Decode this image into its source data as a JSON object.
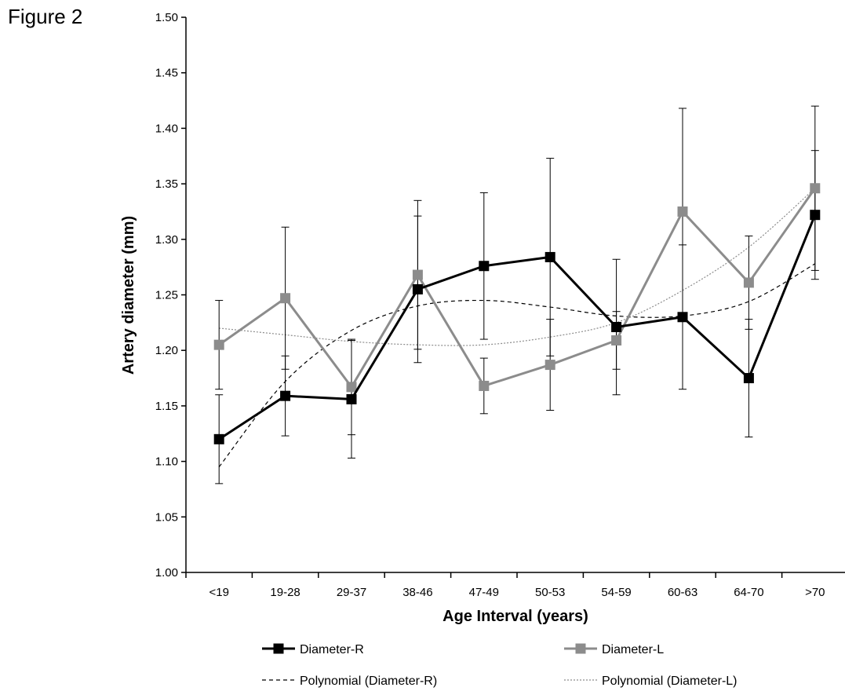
{
  "figure_label": "Figure 2",
  "chart_data": {
    "type": "line",
    "xlabel": "Age Interval (years)",
    "ylabel": "Artery diameter (mm)",
    "categories": [
      "<19",
      "19-28",
      "29-37",
      "38-46",
      "47-49",
      "50-53",
      "54-59",
      "60-63",
      "64-70",
      ">70"
    ],
    "ylim": [
      1.0,
      1.5
    ],
    "yticks": [
      "1.00",
      "1.05",
      "1.10",
      "1.15",
      "1.20",
      "1.25",
      "1.30",
      "1.35",
      "1.40",
      "1.45",
      "1.50"
    ],
    "grid": false,
    "legend_position": "bottom",
    "series": [
      {
        "name": "Diameter-R",
        "color": "#000000",
        "marker": "square",
        "values": [
          1.12,
          1.159,
          1.156,
          1.255,
          1.276,
          1.284,
          1.221,
          1.23,
          1.175,
          1.322
        ],
        "error": [
          0.04,
          0.036,
          0.053,
          0.066,
          0.066,
          0.089,
          0.061,
          0.065,
          0.053,
          0.058
        ]
      },
      {
        "name": "Diameter-L",
        "color": "#8c8c8c",
        "marker": "square",
        "values": [
          1.205,
          1.247,
          1.167,
          1.268,
          1.168,
          1.187,
          1.209,
          1.325,
          1.261,
          1.346
        ],
        "error": [
          0.04,
          0.064,
          0.043,
          0.067,
          0.025,
          0.041,
          0.026,
          0.093,
          0.042,
          0.074
        ]
      }
    ],
    "trendlines": [
      {
        "name": "Polynomial (Diameter-R)",
        "color": "#000000",
        "style": "dashed",
        "values": [
          1.095,
          1.172,
          1.218,
          1.24,
          1.245,
          1.239,
          1.231,
          1.231,
          1.244,
          1.278
        ]
      },
      {
        "name": "Polynomial (Diameter-L)",
        "color": "#8c8c8c",
        "style": "dotted",
        "values": [
          1.22,
          1.214,
          1.208,
          1.205,
          1.205,
          1.212,
          1.225,
          1.254,
          1.293,
          1.346
        ]
      }
    ]
  }
}
